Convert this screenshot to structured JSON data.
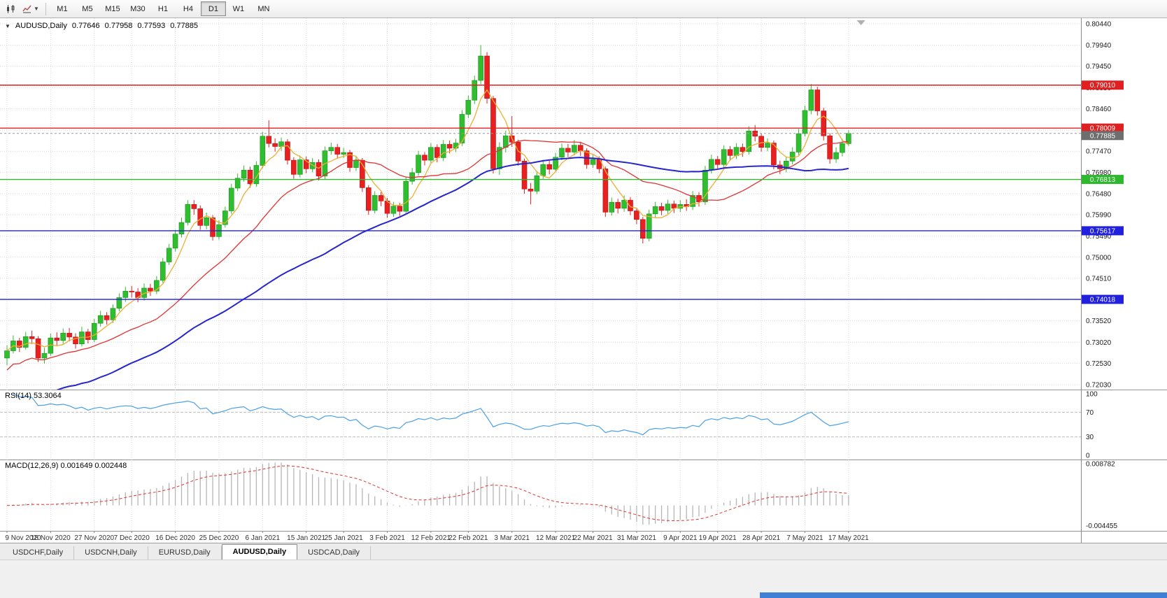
{
  "window": {
    "title": "AUDUSD,Daily"
  },
  "toolbar": {
    "timeframes": [
      "M1",
      "M5",
      "M15",
      "M30",
      "H1",
      "H4",
      "D1",
      "W1",
      "MN"
    ],
    "active_timeframe": "D1"
  },
  "chart": {
    "title": {
      "collapse_icon": "▼",
      "symbol": "AUDUSD,Daily",
      "open": "0.77646",
      "high": "0.77958",
      "low": "0.77593",
      "close": "0.77885"
    },
    "price_axis_labels": [
      "0.80440",
      "0.79940",
      "0.79450",
      "0.78950",
      "0.78460",
      "0.77960",
      "0.77470",
      "0.76980",
      "0.76480",
      "0.75990",
      "0.75490",
      "0.75000",
      "0.74510",
      "0.74010",
      "0.73520",
      "0.73020",
      "0.72530",
      "0.72030"
    ],
    "levels": [
      {
        "price": 0.7901,
        "label": "0.79010",
        "color": "#e02020"
      },
      {
        "price": 0.78009,
        "label": "0.78009",
        "color": "#e02020"
      },
      {
        "price": 0.76813,
        "label": "0.76813",
        "color": "#2db82d"
      },
      {
        "price": 0.75617,
        "label": "0.75617",
        "color": "#2121dd"
      },
      {
        "price": 0.74018,
        "label": "0.74018",
        "color": "#2121dd"
      }
    ],
    "bid": {
      "price": 0.77885,
      "label": "0.77885",
      "color": "#6e6e6e"
    },
    "colors": {
      "up": "#2fbe2f",
      "up_border": "#1f8f1f",
      "down": "#e82020",
      "down_border": "#b31515",
      "ma_fast": "#efae32",
      "ma_mid": "#e03232",
      "ma_slow": "#2626cc",
      "grid": "#d9d9d9",
      "separator": "#8a8a8a",
      "border": "#949494"
    }
  },
  "rsi": {
    "label": "RSI(14) 53.3064",
    "value": "53.3064",
    "period": 14,
    "scale_labels": [
      "100",
      "70",
      "30",
      "0"
    ],
    "level_lines": [
      70,
      30
    ],
    "color": "#4aa0e8"
  },
  "macd": {
    "label": "MACD(12,26,9) 0.001649 0.002448",
    "values": [
      "0.001649",
      "0.002448"
    ],
    "scale_top": "0.008782",
    "scale_bottom": "-0.004455",
    "fast": 12,
    "slow": 26,
    "signal": 9,
    "hist_color": "#b6b6b6",
    "signal_color": "#e03232"
  },
  "tabs": {
    "items": [
      "USDCHF,Daily",
      "USDCNH,Daily",
      "EURUSD,Daily",
      "AUDUSD,Daily",
      "USDCAD,Daily"
    ],
    "active": "AUDUSD,Daily"
  },
  "chart_data": {
    "type": "candlestick",
    "symbol": "AUDUSD",
    "timeframe": "Daily",
    "ylim": [
      0.7203,
      0.8044
    ],
    "overlays": {
      "ma_fast_period": 5,
      "ma_mid_period": 20,
      "ma_slow_period": 52
    },
    "x_ticks": [
      {
        "i": 0,
        "label": "9 Nov 2020"
      },
      {
        "i": 7,
        "label": "18 Nov 2020"
      },
      {
        "i": 14,
        "label": "27 Nov 2020"
      },
      {
        "i": 20,
        "label": "7 Dec 2020"
      },
      {
        "i": 27,
        "label": "16 Dec 2020"
      },
      {
        "i": 34,
        "label": "25 Dec 2020"
      },
      {
        "i": 41,
        "label": "6 Jan 2021"
      },
      {
        "i": 48,
        "label": "15 Jan 2021"
      },
      {
        "i": 54,
        "label": "25 Jan 2021"
      },
      {
        "i": 61,
        "label": "3 Feb 2021"
      },
      {
        "i": 68,
        "label": "12 Feb 2021"
      },
      {
        "i": 74,
        "label": "22 Feb 2021"
      },
      {
        "i": 81,
        "label": "3 Mar 2021"
      },
      {
        "i": 88,
        "label": "12 Mar 2021"
      },
      {
        "i": 94,
        "label": "22 Mar 2021"
      },
      {
        "i": 101,
        "label": "31 Mar 2021"
      },
      {
        "i": 108,
        "label": "9 Apr 2021"
      },
      {
        "i": 114,
        "label": "19 Apr 2021"
      },
      {
        "i": 121,
        "label": "28 Apr 2021"
      },
      {
        "i": 128,
        "label": "7 May 2021"
      },
      {
        "i": 135,
        "label": "17 May 2021"
      }
    ],
    "ohlc": [
      [
        0.7265,
        0.7295,
        0.7248,
        0.7282
      ],
      [
        0.7282,
        0.7318,
        0.7276,
        0.7305
      ],
      [
        0.7305,
        0.7312,
        0.7279,
        0.729
      ],
      [
        0.729,
        0.7326,
        0.7285,
        0.7315
      ],
      [
        0.7315,
        0.7329,
        0.7298,
        0.731
      ],
      [
        0.731,
        0.7316,
        0.7256,
        0.7265
      ],
      [
        0.7265,
        0.7289,
        0.7252,
        0.7276
      ],
      [
        0.7276,
        0.7322,
        0.727,
        0.7312
      ],
      [
        0.7312,
        0.7325,
        0.7295,
        0.7306
      ],
      [
        0.7306,
        0.7334,
        0.7298,
        0.7323
      ],
      [
        0.7323,
        0.7335,
        0.7304,
        0.7314
      ],
      [
        0.7314,
        0.7323,
        0.7287,
        0.7298
      ],
      [
        0.7298,
        0.7338,
        0.7292,
        0.7326
      ],
      [
        0.7326,
        0.7333,
        0.7299,
        0.7308
      ],
      [
        0.7308,
        0.7356,
        0.7302,
        0.7346
      ],
      [
        0.7346,
        0.7375,
        0.7338,
        0.7364
      ],
      [
        0.7364,
        0.7372,
        0.7343,
        0.7354
      ],
      [
        0.7354,
        0.739,
        0.7347,
        0.7381
      ],
      [
        0.7381,
        0.7416,
        0.7374,
        0.7406
      ],
      [
        0.7406,
        0.7431,
        0.7396,
        0.7421
      ],
      [
        0.7421,
        0.7433,
        0.7406,
        0.7419
      ],
      [
        0.7419,
        0.7428,
        0.7395,
        0.7406
      ],
      [
        0.7406,
        0.7439,
        0.7399,
        0.7428
      ],
      [
        0.7428,
        0.7438,
        0.741,
        0.7421
      ],
      [
        0.7421,
        0.7456,
        0.7414,
        0.7446
      ],
      [
        0.7446,
        0.7498,
        0.744,
        0.7489
      ],
      [
        0.7489,
        0.7531,
        0.7482,
        0.7521
      ],
      [
        0.7521,
        0.7564,
        0.7513,
        0.7554
      ],
      [
        0.7554,
        0.7592,
        0.7546,
        0.7581
      ],
      [
        0.7581,
        0.7633,
        0.7574,
        0.7623
      ],
      [
        0.7623,
        0.7633,
        0.7599,
        0.7613
      ],
      [
        0.7613,
        0.7621,
        0.7564,
        0.7574
      ],
      [
        0.7574,
        0.7604,
        0.7565,
        0.7592
      ],
      [
        0.7592,
        0.7598,
        0.7539,
        0.7548
      ],
      [
        0.7548,
        0.7586,
        0.7541,
        0.7576
      ],
      [
        0.7576,
        0.7618,
        0.7569,
        0.7608
      ],
      [
        0.7608,
        0.7671,
        0.7601,
        0.7661
      ],
      [
        0.7661,
        0.7695,
        0.7654,
        0.7684
      ],
      [
        0.7684,
        0.7714,
        0.7676,
        0.7703
      ],
      [
        0.7703,
        0.7711,
        0.7662,
        0.7671
      ],
      [
        0.7671,
        0.7724,
        0.7664,
        0.7714
      ],
      [
        0.7714,
        0.7792,
        0.7707,
        0.7782
      ],
      [
        0.7782,
        0.7819,
        0.7756,
        0.7765
      ],
      [
        0.7765,
        0.7777,
        0.7746,
        0.7758
      ],
      [
        0.7758,
        0.7779,
        0.7748,
        0.7769
      ],
      [
        0.7769,
        0.7775,
        0.7716,
        0.7726
      ],
      [
        0.7726,
        0.7733,
        0.7683,
        0.7693
      ],
      [
        0.7693,
        0.7737,
        0.7686,
        0.7727
      ],
      [
        0.7727,
        0.7735,
        0.7696,
        0.7706
      ],
      [
        0.7706,
        0.7731,
        0.7698,
        0.7721
      ],
      [
        0.7721,
        0.7728,
        0.7679,
        0.7689
      ],
      [
        0.7689,
        0.7758,
        0.7682,
        0.7748
      ],
      [
        0.7748,
        0.7767,
        0.7739,
        0.7756
      ],
      [
        0.7756,
        0.7764,
        0.773,
        0.774
      ],
      [
        0.774,
        0.7755,
        0.7731,
        0.7744
      ],
      [
        0.7744,
        0.775,
        0.7699,
        0.7709
      ],
      [
        0.7709,
        0.7736,
        0.7701,
        0.7726
      ],
      [
        0.7726,
        0.7731,
        0.7652,
        0.7662
      ],
      [
        0.7662,
        0.7668,
        0.7599,
        0.7609
      ],
      [
        0.7609,
        0.7654,
        0.7602,
        0.7644
      ],
      [
        0.7644,
        0.7652,
        0.7619,
        0.7631
      ],
      [
        0.7631,
        0.7638,
        0.7592,
        0.7602
      ],
      [
        0.7602,
        0.7629,
        0.7594,
        0.7619
      ],
      [
        0.7619,
        0.7627,
        0.7596,
        0.7607
      ],
      [
        0.7607,
        0.7687,
        0.76,
        0.7677
      ],
      [
        0.7677,
        0.7708,
        0.7669,
        0.7697
      ],
      [
        0.7697,
        0.7748,
        0.769,
        0.7738
      ],
      [
        0.7738,
        0.7745,
        0.7714,
        0.7726
      ],
      [
        0.7726,
        0.7766,
        0.7718,
        0.7756
      ],
      [
        0.7756,
        0.7763,
        0.7721,
        0.7732
      ],
      [
        0.7732,
        0.7773,
        0.7724,
        0.7763
      ],
      [
        0.7763,
        0.7772,
        0.7742,
        0.7754
      ],
      [
        0.7754,
        0.7776,
        0.7745,
        0.7766
      ],
      [
        0.7766,
        0.7843,
        0.7759,
        0.7833
      ],
      [
        0.7833,
        0.7877,
        0.7824,
        0.7866
      ],
      [
        0.7866,
        0.7923,
        0.7857,
        0.7912
      ],
      [
        0.7912,
        0.79945,
        0.7903,
        0.7969
      ],
      [
        0.7969,
        0.7978,
        0.7858,
        0.787
      ],
      [
        0.787,
        0.7876,
        0.7695,
        0.7706
      ],
      [
        0.7706,
        0.7768,
        0.7692,
        0.7756
      ],
      [
        0.7756,
        0.7795,
        0.7744,
        0.7783
      ],
      [
        0.7783,
        0.7829,
        0.7757,
        0.7768
      ],
      [
        0.7768,
        0.7774,
        0.7713,
        0.7724
      ],
      [
        0.7724,
        0.773,
        0.7648,
        0.7659
      ],
      [
        0.7659,
        0.7673,
        0.7623,
        0.7654
      ],
      [
        0.7654,
        0.7701,
        0.7647,
        0.769
      ],
      [
        0.769,
        0.7727,
        0.7683,
        0.7716
      ],
      [
        0.7716,
        0.7725,
        0.7693,
        0.7705
      ],
      [
        0.7705,
        0.7743,
        0.7698,
        0.7733
      ],
      [
        0.7733,
        0.7765,
        0.7726,
        0.7754
      ],
      [
        0.7754,
        0.7764,
        0.7733,
        0.7745
      ],
      [
        0.7745,
        0.7773,
        0.7737,
        0.7761
      ],
      [
        0.7761,
        0.7769,
        0.7736,
        0.7748
      ],
      [
        0.7748,
        0.7754,
        0.7706,
        0.7716
      ],
      [
        0.7716,
        0.7739,
        0.7708,
        0.7728
      ],
      [
        0.7728,
        0.7735,
        0.7696,
        0.7706
      ],
      [
        0.7706,
        0.7711,
        0.7594,
        0.7605
      ],
      [
        0.7605,
        0.7639,
        0.7597,
        0.7628
      ],
      [
        0.7628,
        0.7636,
        0.7602,
        0.7614
      ],
      [
        0.7614,
        0.7644,
        0.7606,
        0.7633
      ],
      [
        0.7633,
        0.764,
        0.7598,
        0.7608
      ],
      [
        0.7608,
        0.7615,
        0.7577,
        0.7588
      ],
      [
        0.7588,
        0.7594,
        0.7532,
        0.7544
      ],
      [
        0.7544,
        0.7611,
        0.7537,
        0.7601
      ],
      [
        0.7601,
        0.7629,
        0.7593,
        0.7618
      ],
      [
        0.7618,
        0.7627,
        0.7598,
        0.7609
      ],
      [
        0.7609,
        0.7634,
        0.7601,
        0.7624
      ],
      [
        0.7624,
        0.7632,
        0.7603,
        0.7614
      ],
      [
        0.7614,
        0.7633,
        0.7605,
        0.7623
      ],
      [
        0.7623,
        0.7635,
        0.7608,
        0.7618
      ],
      [
        0.7618,
        0.7654,
        0.761,
        0.7644
      ],
      [
        0.7644,
        0.7651,
        0.7618,
        0.7629
      ],
      [
        0.7629,
        0.7713,
        0.7622,
        0.7703
      ],
      [
        0.7703,
        0.7739,
        0.7695,
        0.7728
      ],
      [
        0.7728,
        0.7736,
        0.7704,
        0.7716
      ],
      [
        0.7716,
        0.7761,
        0.7708,
        0.7751
      ],
      [
        0.7751,
        0.7759,
        0.7725,
        0.7737
      ],
      [
        0.7737,
        0.7766,
        0.7729,
        0.7756
      ],
      [
        0.7756,
        0.7765,
        0.7734,
        0.7746
      ],
      [
        0.7746,
        0.7805,
        0.7739,
        0.7794
      ],
      [
        0.7794,
        0.7808,
        0.777,
        0.7782
      ],
      [
        0.7782,
        0.7789,
        0.7746,
        0.7756
      ],
      [
        0.7756,
        0.7777,
        0.7747,
        0.7766
      ],
      [
        0.7766,
        0.7772,
        0.7705,
        0.7715
      ],
      [
        0.7715,
        0.7725,
        0.7694,
        0.7706
      ],
      [
        0.7706,
        0.7735,
        0.7698,
        0.7724
      ],
      [
        0.7724,
        0.7756,
        0.7716,
        0.7745
      ],
      [
        0.7745,
        0.7799,
        0.7738,
        0.7788
      ],
      [
        0.7788,
        0.7853,
        0.7781,
        0.7842
      ],
      [
        0.7842,
        0.79035,
        0.7833,
        0.789
      ],
      [
        0.789,
        0.7897,
        0.783,
        0.7841
      ],
      [
        0.7841,
        0.7848,
        0.7772,
        0.7783
      ],
      [
        0.7783,
        0.7789,
        0.7718,
        0.7729
      ],
      [
        0.7729,
        0.7756,
        0.772,
        0.7744
      ],
      [
        0.7744,
        0.7776,
        0.7735,
        0.7765
      ],
      [
        0.77646,
        0.77958,
        0.77593,
        0.77885
      ]
    ]
  }
}
